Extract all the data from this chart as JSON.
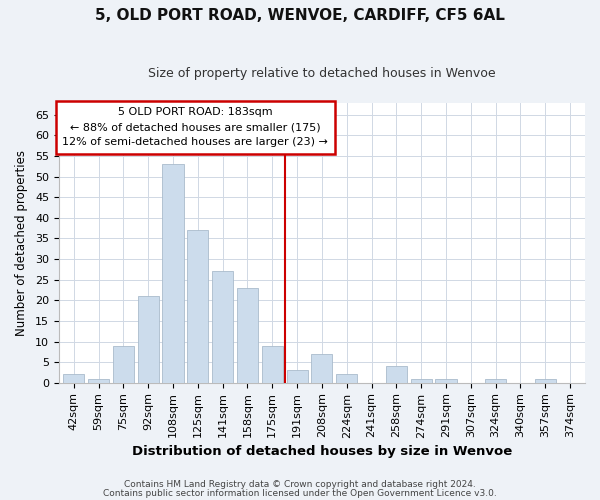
{
  "title": "5, OLD PORT ROAD, WENVOE, CARDIFF, CF5 6AL",
  "subtitle": "Size of property relative to detached houses in Wenvoe",
  "xlabel": "Distribution of detached houses by size in Wenvoe",
  "ylabel": "Number of detached properties",
  "bar_color": "#ccdcec",
  "bar_edge_color": "#aabbcc",
  "categories": [
    "42sqm",
    "59sqm",
    "75sqm",
    "92sqm",
    "108sqm",
    "125sqm",
    "141sqm",
    "158sqm",
    "175sqm",
    "191sqm",
    "208sqm",
    "224sqm",
    "241sqm",
    "258sqm",
    "274sqm",
    "291sqm",
    "307sqm",
    "324sqm",
    "340sqm",
    "357sqm",
    "374sqm"
  ],
  "values": [
    2,
    1,
    9,
    21,
    53,
    37,
    27,
    23,
    9,
    3,
    7,
    2,
    0,
    4,
    1,
    1,
    0,
    1,
    0,
    1,
    0
  ],
  "ylim": [
    0,
    68
  ],
  "yticks": [
    0,
    5,
    10,
    15,
    20,
    25,
    30,
    35,
    40,
    45,
    50,
    55,
    60,
    65
  ],
  "vline_x_index": 8.5,
  "vline_color": "#cc0000",
  "annotation_title": "5 OLD PORT ROAD: 183sqm",
  "annotation_line1": "← 88% of detached houses are smaller (175)",
  "annotation_line2": "12% of semi-detached houses are larger (23) →",
  "annotation_box_edge": "#cc0000",
  "footer_line1": "Contains HM Land Registry data © Crown copyright and database right 2024.",
  "footer_line2": "Contains public sector information licensed under the Open Government Licence v3.0.",
  "background_color": "#eef2f7",
  "plot_bg_color": "#ffffff",
  "grid_color": "#d0d8e4",
  "title_fontsize": 11,
  "subtitle_fontsize": 9,
  "tick_fontsize": 8,
  "xlabel_fontsize": 9.5,
  "ylabel_fontsize": 8.5,
  "footer_fontsize": 6.5
}
